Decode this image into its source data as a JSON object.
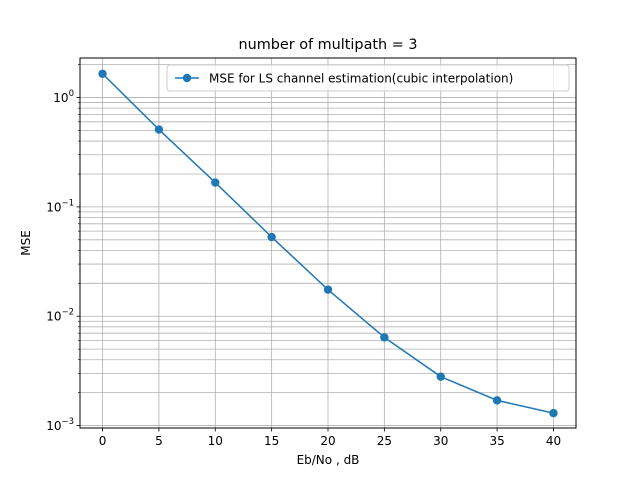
{
  "chart_data": {
    "type": "line",
    "title": "number of multipath = 3",
    "xlabel": "Eb/No , dB",
    "ylabel": "MSE",
    "yscale": "log",
    "x": [
      0,
      5,
      10,
      15,
      20,
      25,
      30,
      35,
      40
    ],
    "xticks": [
      0,
      5,
      10,
      15,
      20,
      25,
      30,
      35,
      40
    ],
    "xlim": [
      -2,
      42
    ],
    "ylim": [
      0.00095,
      2.3
    ],
    "yticks": [
      {
        "value": 1,
        "base": "10",
        "exp": "0"
      },
      {
        "value": 0.1,
        "base": "10",
        "exp": "−1"
      },
      {
        "value": 0.01,
        "base": "10",
        "exp": "−2"
      },
      {
        "value": 0.001,
        "base": "10",
        "exp": "−3"
      }
    ],
    "grid": true,
    "grid_minor": true,
    "legend_position": "upper-right",
    "series": [
      {
        "name": "MSE for LS channel estimation(cubic interpolation)",
        "color": "#1f77b4",
        "marker": "circle",
        "values": [
          1.65,
          0.51,
          0.167,
          0.053,
          0.0175,
          0.0064,
          0.0028,
          0.0017,
          0.0013
        ]
      }
    ]
  }
}
